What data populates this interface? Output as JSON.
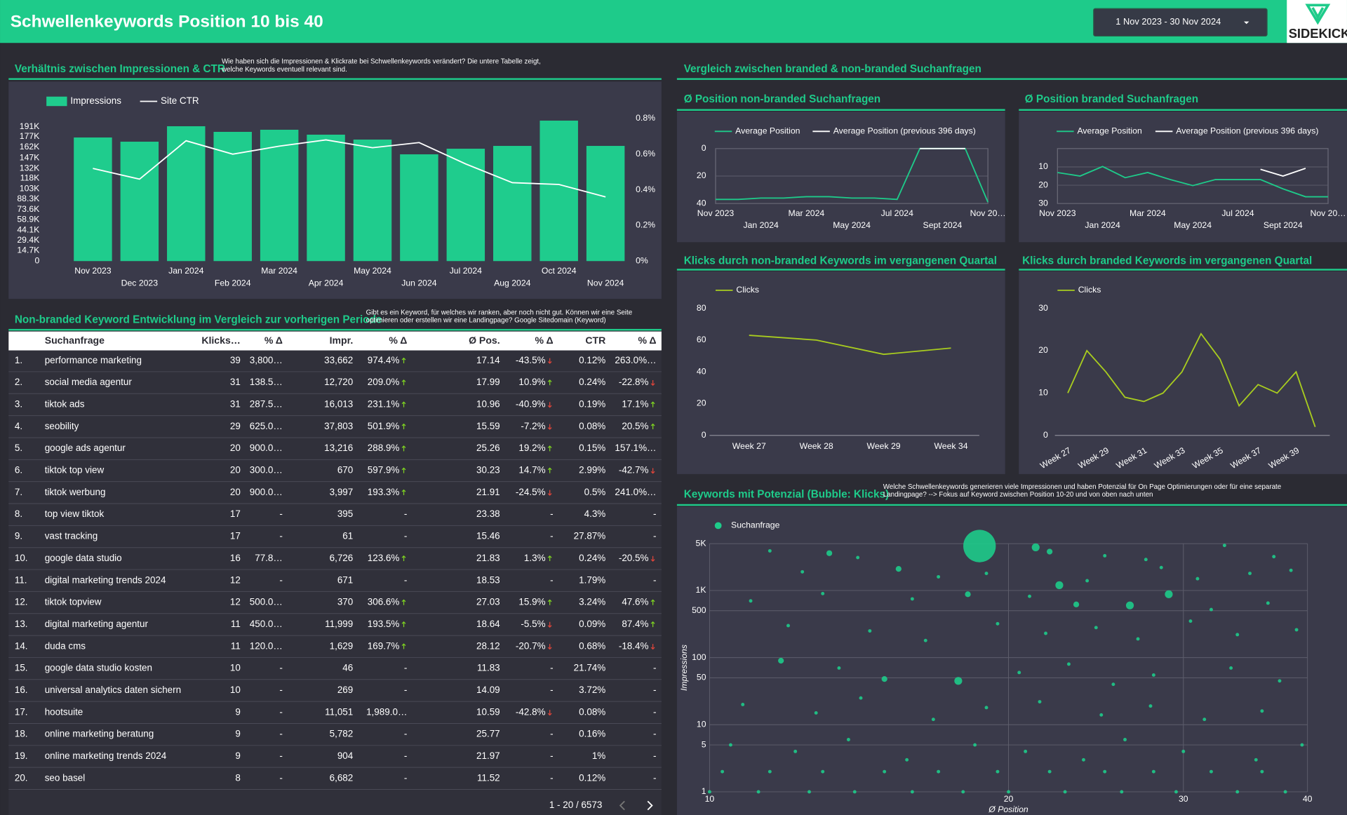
{
  "header": {
    "title": "Schwellenkeywords Position 10 bis 40",
    "date_range": "1 Nov 2023 - 30 Nov 2024",
    "logo": "SIDEKICK"
  },
  "comparison_section": {
    "title": "Vergleich zwischen branded & non-branded Suchanfragen"
  },
  "chart_data": [
    {
      "type": "combo",
      "title": "Verhältnis zwischen Impressionen & CTR",
      "note": [
        "Wie haben sich die Impressionen & Klickrate bei Schwellenkeywords verändert? Die untere Tabelle zeigt,",
        "welche Keywords eventuell relevant sind."
      ],
      "categories": [
        "Nov 2023",
        "Dec 2023",
        "Jan 2024",
        "Feb 2024",
        "Mar 2024",
        "Apr 2024",
        "May 2024",
        "Jun 2024",
        "Jul 2024",
        "Aug 2024",
        "Oct 2024",
        "Nov 2024"
      ],
      "series": [
        {
          "name": "Impressions",
          "type": "bar",
          "color": "#1fcc8d",
          "values": [
            176000,
            170000,
            192000,
            184000,
            187000,
            180000,
            173000,
            152000,
            160000,
            164000,
            200000,
            164000
          ]
        },
        {
          "name": "Site CTR",
          "type": "line",
          "axis": "y2",
          "color": "#ffffff",
          "values": [
            0.52,
            0.46,
            0.675,
            0.6,
            0.645,
            0.68,
            0.636,
            0.665,
            0.545,
            0.44,
            0.43,
            0.36
          ]
        }
      ],
      "ylim": [
        0,
        203000
      ],
      "yticks": [
        0,
        {
          "value": 14700,
          "label": "14.7K"
        },
        {
          "value": 29400,
          "label": "29.4K"
        },
        {
          "value": 44100,
          "label": "44.1K"
        },
        {
          "value": 58900,
          "label": "58.9K"
        },
        {
          "value": 73600,
          "label": "73.6K"
        },
        {
          "value": 88300,
          "label": "88.3K"
        },
        {
          "value": 103000,
          "label": "103K"
        },
        {
          "value": 118000,
          "label": "118K"
        },
        {
          "value": 132000,
          "label": "132K"
        },
        {
          "value": 147000,
          "label": "147K"
        },
        {
          "value": 162000,
          "label": "162K"
        },
        {
          "value": 177000,
          "label": "177K"
        },
        {
          "value": 191000,
          "label": "191K"
        }
      ],
      "y2lim": [
        0,
        0.8
      ],
      "y2ticks": [
        {
          "value": 0,
          "label": "0%"
        },
        {
          "value": 0.2,
          "label": "0.2%"
        },
        {
          "value": 0.4,
          "label": "0.4%"
        },
        {
          "value": 0.6,
          "label": "0.6%"
        },
        {
          "value": 0.8,
          "label": "0.8%"
        }
      ],
      "grid": false
    },
    {
      "type": "line",
      "title": "Ø Position non-branded Suchanfragen",
      "categories": [
        "Nov 2023",
        null,
        "Jan 2024",
        null,
        "Mar 2024",
        null,
        "May 2024",
        null,
        "Jul 2024",
        null,
        "Sept 2024",
        null,
        "Nov 20…"
      ],
      "series": [
        {
          "name": "Average Position",
          "color": "#1ecb8a",
          "values": [
            37,
            37,
            36,
            36,
            35,
            35,
            36,
            36,
            37,
            0,
            0,
            0,
            39
          ]
        },
        {
          "name": "Average Position (previous 396 days)",
          "color": "#ffffff",
          "values": [
            null,
            null,
            null,
            null,
            null,
            null,
            null,
            null,
            null,
            0,
            0,
            0,
            null
          ]
        }
      ],
      "ylim": [
        0,
        40
      ],
      "yticks": [
        0,
        20,
        40
      ],
      "y_reversed": true,
      "grid": true
    },
    {
      "type": "line",
      "title": "Ø Position branded Suchanfragen",
      "categories": [
        "Nov 2023",
        null,
        "Jan 2024",
        null,
        "Mar 2024",
        null,
        "May 2024",
        null,
        "Jul 2024",
        null,
        "Sept 2024",
        null,
        "Nov 20…"
      ],
      "series": [
        {
          "name": "Average Position",
          "color": "#1ecb8a",
          "values": [
            13.1,
            15,
            9.8,
            15.9,
            13.1,
            16.9,
            20.2,
            16.9,
            16.9,
            16.9,
            22,
            26.3,
            26.3
          ]
        },
        {
          "name": "Average Position (previous 396 days)",
          "color": "#ffffff",
          "values": [
            null,
            null,
            null,
            null,
            null,
            null,
            null,
            null,
            null,
            11.3,
            15,
            10.8,
            null
          ]
        }
      ],
      "ylim": [
        0,
        30
      ],
      "yticks": [
        10,
        20,
        30
      ],
      "y_reversed": true,
      "grid": true
    },
    {
      "type": "line",
      "title": "Klicks durch non-branded Keywords im vergangenen Quartal",
      "categories": [
        "Week 27",
        "Week 28",
        "Week 29",
        "Week 34"
      ],
      "series": [
        {
          "name": "Clicks",
          "color": "#a8cc1f",
          "values": [
            63,
            60,
            51,
            55
          ]
        }
      ],
      "ylim": [
        0,
        80
      ],
      "yticks": [
        0,
        20,
        40,
        60,
        80
      ],
      "grid": false
    },
    {
      "type": "line",
      "title": "Klicks durch branded Keywords im vergangenen Quartal",
      "categories": [
        "Week 27",
        null,
        "Week 29",
        null,
        "Week 31",
        null,
        "Week 33",
        null,
        "Week 35",
        null,
        "Week 37",
        null,
        "Week 39",
        null
      ],
      "series": [
        {
          "name": "Clicks",
          "color": "#a8cc1f",
          "values": [
            10,
            20,
            15,
            9,
            8,
            10,
            15,
            24,
            18,
            7,
            12,
            10,
            15,
            2
          ]
        }
      ],
      "ylim": [
        0,
        30
      ],
      "yticks": [
        0,
        10,
        20,
        30
      ],
      "grid": false
    },
    {
      "type": "scatter",
      "title": "Keywords mit Potenzial (Bubble: Klicks)",
      "note": [
        "Welche Schwellenkeywords generieren viele Impressionen und haben Potenzial für On Page Optimierungen oder für eine separate",
        "Landingpage? --> Fokus auf Keyword zwischen Position 10-20 und von oben nach unten"
      ],
      "x_label": "Ø Position",
      "y_label": "Impressions",
      "xscale": "log",
      "yscale": "log",
      "xlim": [
        10,
        40
      ],
      "ylim": [
        1,
        5000
      ],
      "xticks": [
        10,
        20,
        30,
        40
      ],
      "yticks": [
        1,
        5,
        10,
        50,
        100,
        500,
        {
          "value": 1000,
          "label": "1K"
        },
        {
          "value": 5000,
          "label": "5K"
        }
      ],
      "grid": true,
      "series": [
        {
          "name": "Suchanfrage",
          "color": "#1ecb8a",
          "x": [
            18.7,
            11.5,
            13.2,
            14.1,
            21.3,
            22.0,
            25,
            27.5,
            33,
            37,
            12.4,
            15.5,
            17,
            19,
            22.5,
            24,
            28.5,
            31,
            35,
            38.5,
            11,
            13,
            16,
            18.2,
            21,
            23.4,
            26.5,
            29,
            32,
            36.5,
            12,
            14.5,
            16.5,
            19.5,
            21.8,
            24.5,
            27,
            30.5,
            34,
            39,
            11.8,
            13.5,
            15,
            17.8,
            20.5,
            23,
            25.5,
            28,
            33.5,
            37.5,
            10.8,
            12.8,
            14.2,
            16.8,
            19,
            21.5,
            24.8,
            27.8,
            31.5,
            36,
            10.5,
            12.2,
            13.8,
            15.8,
            18.5,
            20.8,
            23.8,
            26.2,
            30,
            35.5,
            39.5,
            10.3,
            11.5,
            13,
            15,
            17,
            19.5,
            22,
            25,
            28,
            32,
            36,
            10,
            11.2,
            12.6,
            14,
            16,
            18,
            20,
            22.8,
            26,
            29.5,
            34,
            38
          ],
          "values": [
            4600,
            3900,
            3600,
            3100,
            4400,
            3800,
            3300,
            2900,
            4700,
            3200,
            1900,
            2100,
            1600,
            1800,
            1200,
            1400,
            2200,
            1500,
            1800,
            2000,
            700,
            900,
            750,
            880,
            820,
            620,
            600,
            880,
            520,
            650,
            300,
            250,
            180,
            320,
            230,
            280,
            190,
            350,
            220,
            260,
            90,
            70,
            48,
            45,
            60,
            80,
            40,
            55,
            70,
            45,
            20,
            15,
            25,
            12,
            18,
            22,
            14,
            19,
            12,
            16,
            5,
            4,
            6,
            3,
            5,
            4,
            3,
            6,
            4,
            3,
            5,
            2,
            2,
            2,
            2,
            2,
            2,
            2,
            2,
            2,
            2,
            2,
            1,
            1,
            1,
            1,
            1,
            1,
            1,
            1,
            1,
            1,
            1,
            1
          ],
          "sizes": [
            20,
            1,
            2,
            1,
            3,
            2,
            1,
            1,
            1,
            1,
            1,
            2,
            1,
            1,
            3,
            1,
            1,
            1,
            1,
            1,
            1,
            1,
            1,
            2,
            1,
            2,
            3,
            3,
            1,
            1,
            1,
            1,
            1,
            1,
            1,
            1,
            1,
            1,
            1,
            1,
            2,
            1,
            2,
            3,
            1,
            1,
            1,
            1,
            1,
            1,
            1,
            1,
            1,
            1,
            1,
            1,
            1,
            1,
            1,
            1,
            1,
            1,
            1,
            1,
            1,
            1,
            1,
            1,
            1,
            1,
            1,
            1,
            1,
            1,
            1,
            1,
            1,
            1,
            1,
            1,
            1,
            1,
            1,
            1,
            1,
            1,
            1,
            1,
            1,
            1,
            1,
            1,
            1,
            1
          ]
        }
      ]
    }
  ],
  "table": {
    "title": "Non-branded Keyword Entwicklung im Vergleich zur vorherigen Periode",
    "note": [
      "Gibt es ein Keyword, für welches wir ranken, aber noch nicht gut. Können wir eine Seite",
      "optimieren oder erstellen wir eine Landingpage? Google Sitedomain (Keyword)"
    ],
    "columns": [
      "Suchanfrage",
      "Klicks…",
      "% Δ",
      "Impr.",
      "% Δ",
      "Ø Pos.",
      "% Δ",
      "CTR",
      "% Δ"
    ],
    "rows": [
      [
        "1.",
        "performance marketing",
        39,
        "3,800…",
        "33,662",
        "974.4%",
        "17.14",
        "-43.5%",
        "0.12%",
        "263.0%…"
      ],
      [
        "2.",
        "social media agentur",
        31,
        "138.5…",
        "12,720",
        "209.0%",
        "17.99",
        "10.9%",
        "0.24%",
        "-22.8%"
      ],
      [
        "3.",
        "tiktok ads",
        31,
        "287.5…",
        "16,013",
        "231.1%",
        "10.96",
        "-40.9%",
        "0.19%",
        "17.1%"
      ],
      [
        "4.",
        "seobility",
        29,
        "625.0…",
        "37,803",
        "501.9%",
        "15.59",
        "-7.2%",
        "0.08%",
        "20.5%"
      ],
      [
        "5.",
        "google ads agentur",
        20,
        "900.0…",
        "13,216",
        "288.9%",
        "25.26",
        "19.2%",
        "0.15%",
        "157.1%…"
      ],
      [
        "6.",
        "tiktok top view",
        20,
        "300.0…",
        "670",
        "597.9%",
        "30.23",
        "14.7%",
        "2.99%",
        "-42.7%"
      ],
      [
        "7.",
        "tiktok werbung",
        20,
        "900.0…",
        "3,997",
        "193.3%",
        "21.91",
        "-24.5%",
        "0.5%",
        "241.0%…"
      ],
      [
        "8.",
        "top view tiktok",
        17,
        "-",
        "395",
        "-",
        "23.38",
        "-",
        "4.3%",
        "-"
      ],
      [
        "9.",
        "vast tracking",
        17,
        "-",
        "61",
        "-",
        "15.46",
        "-",
        "27.87%",
        "-"
      ],
      [
        "10.",
        "google data studio",
        16,
        "77.8…",
        "6,726",
        "123.6%",
        "21.83",
        "1.3%",
        "0.24%",
        "-20.5%"
      ],
      [
        "11.",
        "digital marketing trends 2024",
        12,
        "-",
        "671",
        "-",
        "18.53",
        "-",
        "1.79%",
        "-"
      ],
      [
        "12.",
        "tiktok topview",
        12,
        "500.0…",
        "370",
        "306.6%",
        "27.03",
        "15.9%",
        "3.24%",
        "47.6%"
      ],
      [
        "13.",
        "digital marketing agentur",
        11,
        "450.0…",
        "11,999",
        "193.5%",
        "18.64",
        "-5.5%",
        "0.09%",
        "87.4%"
      ],
      [
        "14.",
        "duda cms",
        11,
        "120.0…",
        "1,629",
        "169.7%",
        "28.12",
        "-20.7%",
        "0.68%",
        "-18.4%"
      ],
      [
        "15.",
        "google data studio kosten",
        10,
        "-",
        "46",
        "-",
        "11.83",
        "-",
        "21.74%",
        "-"
      ],
      [
        "16.",
        "universal analytics daten sichern",
        10,
        "-",
        "269",
        "-",
        "14.09",
        "-",
        "3.72%",
        "-"
      ],
      [
        "17.",
        "hootsuite",
        9,
        "-",
        "11,051",
        "1,989.0…",
        "10.59",
        "-42.8%",
        "0.08%",
        "-"
      ],
      [
        "18.",
        "online marketing beratung",
        9,
        "-",
        "5,782",
        "-",
        "25.77",
        "-",
        "0.16%",
        "-"
      ],
      [
        "19.",
        "online marketing trends 2024",
        9,
        "-",
        "904",
        "-",
        "21.97",
        "-",
        "1%",
        "-"
      ],
      [
        "20.",
        "seo basel",
        8,
        "-",
        "6,682",
        "-",
        "11.52",
        "-",
        "0.12%",
        "-"
      ]
    ],
    "pagination": "1 - 20 / 6573"
  }
}
